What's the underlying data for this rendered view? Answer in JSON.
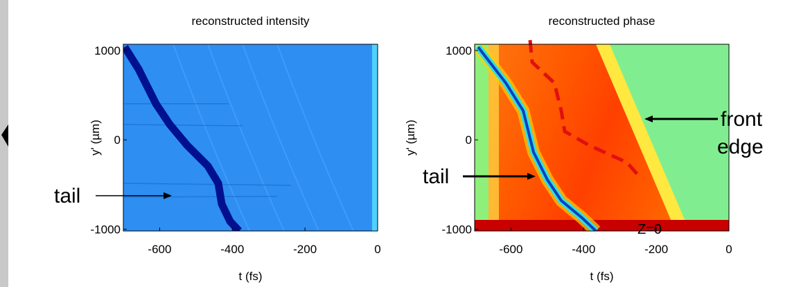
{
  "chart_data": [
    {
      "type": "heatmap",
      "title": "reconstructed intensity",
      "xlabel": "t (fs)",
      "ylabel": "y' (µm)",
      "xlim": [
        -700,
        0
      ],
      "xticks": [
        -600,
        -400,
        -200,
        0
      ],
      "ylim": [
        -1020,
        1070
      ],
      "yticks": [
        -1000,
        0,
        1000
      ],
      "annotations": [
        "tail"
      ]
    },
    {
      "type": "heatmap",
      "title": "reconstructed phase",
      "xlabel": "t (fs)",
      "ylabel": "y' (µm)",
      "xlim": [
        -700,
        0
      ],
      "xticks": [
        -600,
        -400,
        -200,
        0
      ],
      "ylim": [
        -1020,
        1070
      ],
      "yticks": [
        -1000,
        0,
        1000
      ],
      "annotations": [
        "tail",
        "front",
        "edge",
        "Z=0"
      ]
    }
  ]
}
